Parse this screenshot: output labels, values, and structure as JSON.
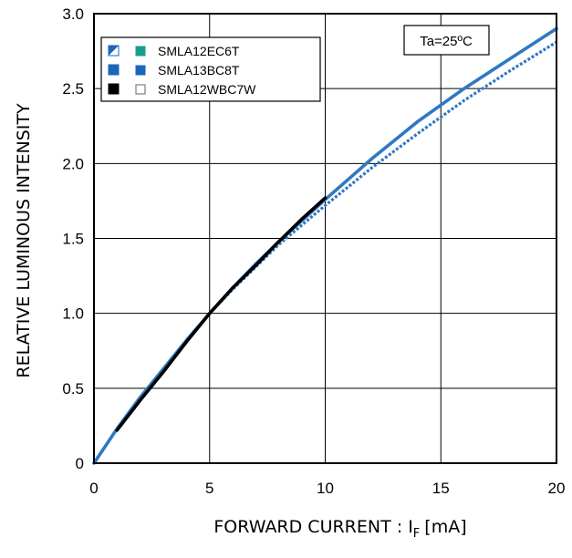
{
  "chart_data": {
    "type": "line",
    "xlabel": "FORWARD CURRENT : I",
    "xlabel_sub": "F",
    "xlabel_unit": "[mA]",
    "ylabel": "RELATIVE LUMINOUS INTENSITY",
    "xlim": [
      0,
      20
    ],
    "ylim": [
      0,
      3.0
    ],
    "xticks": [
      "0",
      "5",
      "10",
      "15",
      "20"
    ],
    "yticks": [
      "0",
      "0.5",
      "1.0",
      "1.5",
      "2.0",
      "2.5",
      "3.0"
    ],
    "grid": true,
    "annotation": "Ta=25ºC",
    "legend_position": "top-left",
    "legend": [
      {
        "label": "SMLA12EC6T",
        "marker_left": "half-blue-diagonal",
        "marker_right": "teal",
        "left_color": "#1a66b8",
        "right_color": "#1a9c8f"
      },
      {
        "label": "SMLA13BC8T",
        "marker_left": "blue",
        "marker_right": "blue",
        "left_color": "#1a66b8",
        "right_color": "#1a66b8"
      },
      {
        "label": "SMLA12WBC7W",
        "marker_left": "black",
        "marker_right": "white",
        "left_color": "#000000",
        "right_color": "#ffffff"
      }
    ],
    "series": [
      {
        "color": "#2f78c2",
        "style": "solid",
        "x": [
          0,
          1,
          2,
          3,
          4,
          5,
          6,
          7,
          8,
          9,
          10,
          12,
          14,
          16,
          18,
          20
        ],
        "y": [
          0,
          0.23,
          0.44,
          0.63,
          0.82,
          1.0,
          1.17,
          1.33,
          1.48,
          1.62,
          1.76,
          2.03,
          2.28,
          2.5,
          2.7,
          2.9
        ]
      },
      {
        "color": "#2f78c2",
        "style": "dotted",
        "x": [
          0,
          1,
          2,
          3,
          4,
          5,
          6,
          7,
          8,
          9,
          10,
          12,
          14,
          16,
          18,
          20
        ],
        "y": [
          0,
          0.23,
          0.44,
          0.63,
          0.82,
          1.0,
          1.16,
          1.31,
          1.46,
          1.59,
          1.72,
          1.97,
          2.2,
          2.42,
          2.62,
          2.81
        ]
      },
      {
        "color": "#000000",
        "style": "solid",
        "x": [
          1,
          2,
          3,
          4,
          5,
          6,
          7,
          8,
          9,
          10
        ],
        "y": [
          0.22,
          0.42,
          0.61,
          0.81,
          1.0,
          1.17,
          1.32,
          1.48,
          1.63,
          1.77
        ]
      }
    ]
  }
}
